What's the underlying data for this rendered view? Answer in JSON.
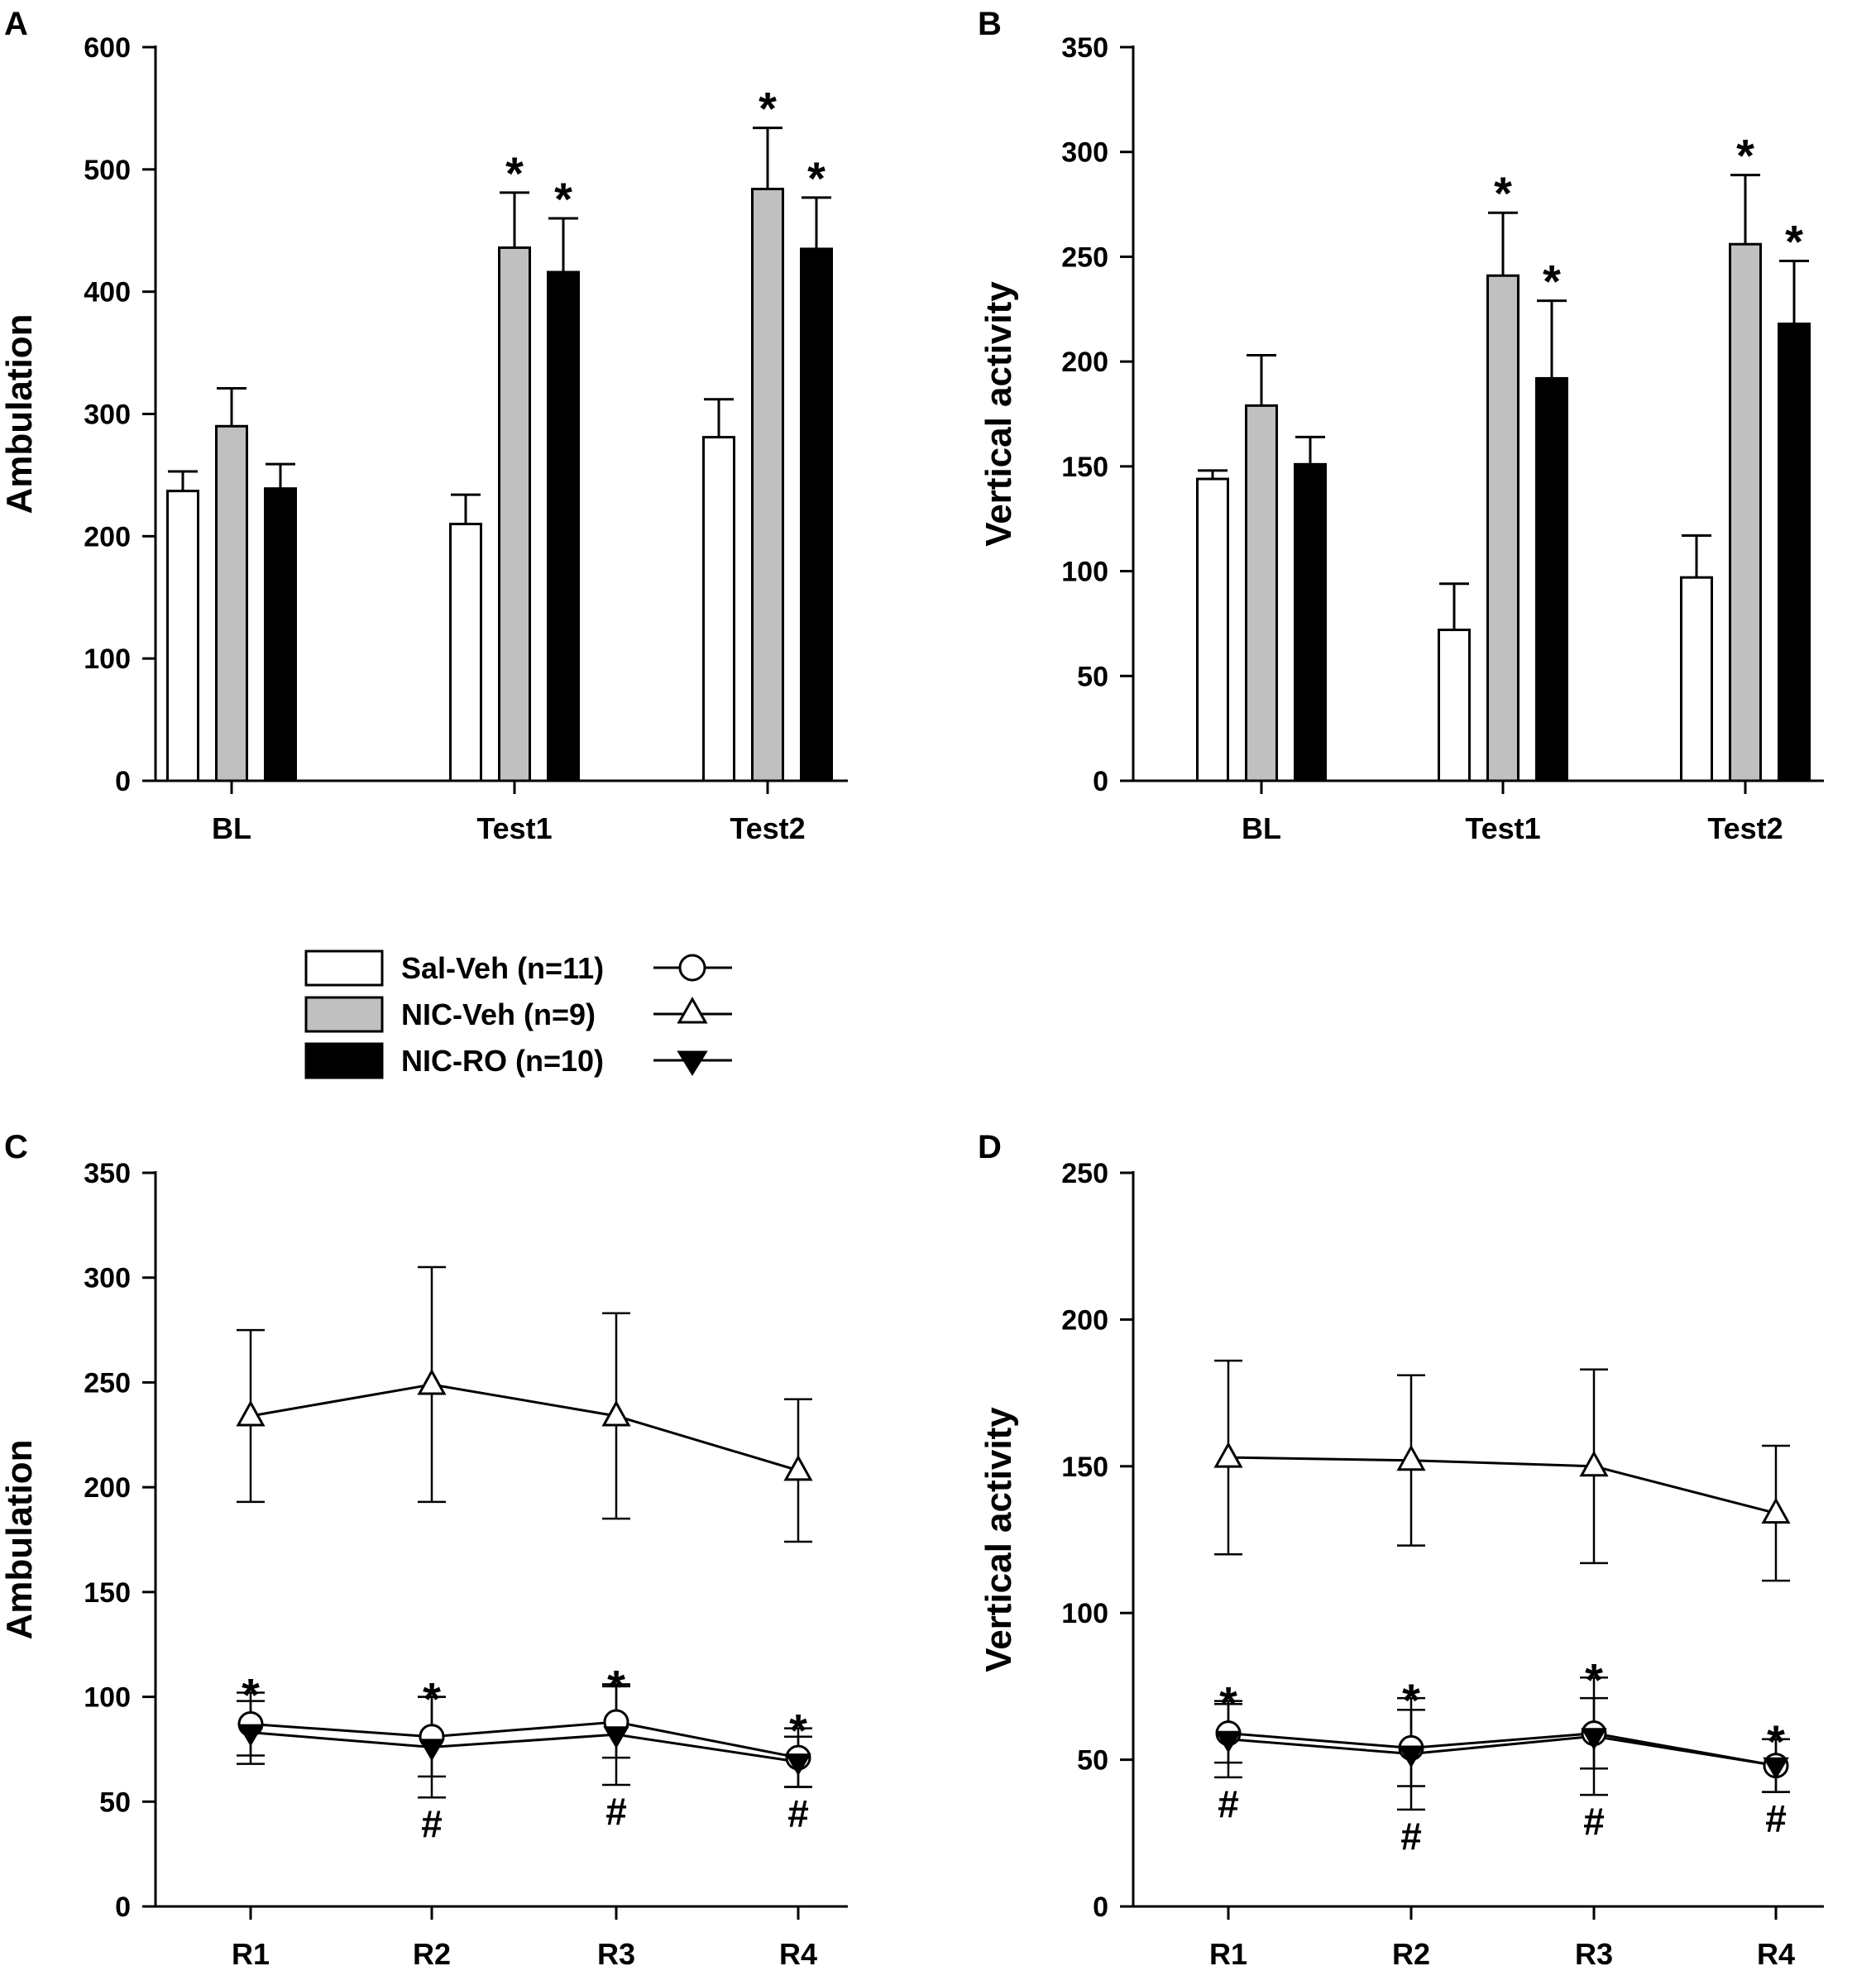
{
  "legend": [
    {
      "label": "Sal-Veh (n=11)",
      "fill": "#ffffff",
      "marker": "circle-open"
    },
    {
      "label": "NIC-Veh (n=9)",
      "fill": "#c0c0c0",
      "marker": "triangle-up-open"
    },
    {
      "label": "NIC-RO (n=10)",
      "fill": "#000000",
      "marker": "triangle-down-filled"
    }
  ],
  "chart_data": [
    {
      "panel": "A",
      "type": "bar",
      "ylabel": "Ambulation",
      "ylim": [
        0,
        600
      ],
      "yticks": [
        "0",
        "100",
        "200",
        "300",
        "400",
        "500",
        "600"
      ],
      "categories": [
        "BL",
        "Test1",
        "Test2"
      ],
      "series": [
        {
          "name": "Sal-Veh (n=11)",
          "values": [
            237,
            210,
            281
          ],
          "errors": [
            16,
            24,
            31
          ],
          "annotations": [
            "",
            "",
            ""
          ]
        },
        {
          "name": "NIC-Veh (n=9)",
          "values": [
            290,
            436,
            484
          ],
          "errors": [
            31,
            45,
            50
          ],
          "annotations": [
            "",
            "*",
            "*"
          ]
        },
        {
          "name": "NIC-RO (n=10)",
          "values": [
            239,
            416,
            435
          ],
          "errors": [
            20,
            44,
            42
          ],
          "annotations": [
            "",
            "*",
            "*"
          ]
        }
      ]
    },
    {
      "panel": "B",
      "type": "bar",
      "ylabel": "Vertical activity",
      "ylim": [
        0,
        350
      ],
      "yticks": [
        "0",
        "50",
        "100",
        "150",
        "200",
        "250",
        "300",
        "350"
      ],
      "categories": [
        "BL",
        "Test1",
        "Test2"
      ],
      "series": [
        {
          "name": "Sal-Veh (n=11)",
          "values": [
            144,
            72,
            97
          ],
          "errors": [
            4,
            22,
            20
          ],
          "annotations": [
            "",
            "",
            ""
          ]
        },
        {
          "name": "NIC-Veh (n=9)",
          "values": [
            179,
            241,
            256
          ],
          "errors": [
            24,
            30,
            33
          ],
          "annotations": [
            "",
            "*",
            "*"
          ]
        },
        {
          "name": "NIC-RO (n=10)",
          "values": [
            151,
            192,
            218
          ],
          "errors": [
            13,
            37,
            30
          ],
          "annotations": [
            "",
            "*",
            "*"
          ]
        }
      ]
    },
    {
      "panel": "C",
      "type": "line",
      "ylabel": "Ambulation",
      "ylim": [
        0,
        350
      ],
      "yticks": [
        "0",
        "50",
        "100",
        "150",
        "200",
        "250",
        "300",
        "350"
      ],
      "categories": [
        "R1",
        "R2",
        "R3",
        "R4"
      ],
      "series": [
        {
          "name": "Sal-Veh (n=11)",
          "values": [
            87,
            81,
            88,
            71
          ],
          "errors": [
            15,
            19,
            17,
            14
          ]
        },
        {
          "name": "NIC-Veh (n=9)",
          "values": [
            234,
            249,
            234,
            208
          ],
          "errors": [
            41,
            56,
            49,
            34
          ]
        },
        {
          "name": "NIC-RO (n=10)",
          "values": [
            83,
            76,
            82,
            69
          ],
          "errors": [
            15,
            24,
            24,
            12
          ]
        }
      ],
      "above_marks": [
        "*",
        "*",
        "*",
        "*"
      ],
      "below_marks": [
        "",
        "#",
        "#",
        "#"
      ]
    },
    {
      "panel": "D",
      "type": "line",
      "ylabel": "Vertical activity",
      "ylim": [
        0,
        250
      ],
      "yticks": [
        "0",
        "50",
        "100",
        "150",
        "200",
        "250"
      ],
      "categories": [
        "R1",
        "R2",
        "R3",
        "R4"
      ],
      "series": [
        {
          "name": "Sal-Veh (n=11)",
          "values": [
            59,
            54,
            59,
            48
          ],
          "errors": [
            10,
            13,
            12,
            9
          ]
        },
        {
          "name": "NIC-Veh (n=9)",
          "values": [
            153,
            152,
            150,
            134
          ],
          "errors": [
            33,
            29,
            33,
            23
          ]
        },
        {
          "name": "NIC-RO (n=10)",
          "values": [
            57,
            52,
            58,
            48
          ],
          "errors": [
            13,
            19,
            20,
            9
          ]
        }
      ],
      "above_marks": [
        "*",
        "*",
        "*",
        "*"
      ],
      "below_marks": [
        "#",
        "#",
        "#",
        "#"
      ]
    }
  ]
}
